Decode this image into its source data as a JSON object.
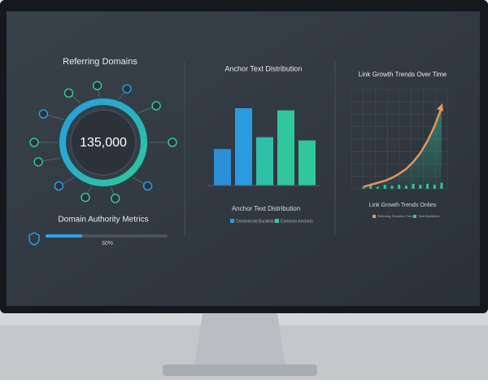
{
  "widgets": {
    "referring_domains": {
      "title": "Referring Domains",
      "total": "135,000"
    },
    "domain_authority": {
      "title": "Domain Authority Metrics",
      "progress": 30,
      "progress_label": "30%"
    }
  },
  "chart_data": [
    {
      "type": "bar",
      "title": "Anchor Text Distribution",
      "subtitle": "Anchor Text Distribution",
      "categories": [
        null,
        null,
        null,
        null,
        null
      ],
      "values": [
        34,
        72,
        45,
        70,
        42
      ],
      "colors": [
        "#2a8fd6",
        "#2a9be0",
        "#2fc0a8",
        "#2fc79b",
        "#2fc79b"
      ],
      "legend": [
        "Commercial Backlinks",
        "Common Anchors"
      ],
      "legend_colors": [
        "#2a9be0",
        "#2fc79b"
      ]
    },
    {
      "type": "line",
      "title": "Link Growth Trends Over Time",
      "subtitle": "Link Growth Trends Onlies",
      "series": [
        {
          "name": "Referring Domains Trend",
          "color": "#e8935a",
          "values": [
            2,
            4,
            6,
            8,
            11,
            15,
            20,
            27,
            36,
            48,
            63,
            82
          ]
        },
        {
          "name": "Total Backlinks",
          "color": "#2fc79b",
          "values": [
            2,
            3,
            2,
            4,
            3,
            4,
            3,
            5,
            4,
            5,
            4,
            6
          ]
        }
      ],
      "ylim": [
        0,
        100
      ],
      "grid": true
    }
  ]
}
